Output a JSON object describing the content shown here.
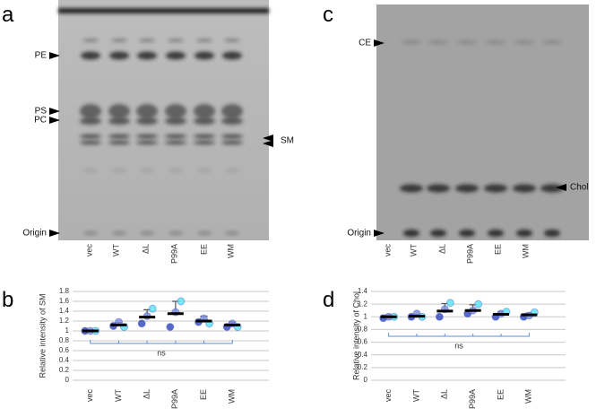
{
  "panel_labels": {
    "a": "a",
    "b": "b",
    "c": "c",
    "d": "d"
  },
  "tlc_a": {
    "lanes": [
      "vec",
      "WT",
      "ΔL",
      "P99A",
      "EE",
      "WM"
    ],
    "markers": [
      "PE",
      "PS",
      "PC",
      "SM",
      "Origin"
    ]
  },
  "tlc_c": {
    "lanes": [
      "vec",
      "WT",
      "ΔL",
      "P99A",
      "EE",
      "WM"
    ],
    "markers": [
      "CE",
      "Chol",
      "Origin"
    ]
  },
  "chart_data": [
    {
      "type": "dot",
      "y_label": "Relative intensity of SM",
      "categories": [
        "vec",
        "WT",
        "ΔL",
        "P99A",
        "EE",
        "WM"
      ],
      "means": [
        1.0,
        1.12,
        1.28,
        1.35,
        1.2,
        1.12
      ],
      "errors": [
        0.02,
        0.05,
        0.15,
        0.25,
        0.1,
        0.06
      ],
      "points": [
        [
          1.0,
          1.0,
          1.0
        ],
        [
          1.1,
          1.18,
          1.08
        ],
        [
          1.15,
          1.3,
          1.45
        ],
        [
          1.08,
          1.38,
          1.6
        ],
        [
          1.18,
          1.25,
          1.15
        ],
        [
          1.08,
          1.15,
          1.08
        ]
      ],
      "point_colors": [
        "#3a4fc0",
        "#8090e0",
        "#60e4f4"
      ],
      "ylim": [
        0,
        1.8
      ],
      "yticks": [
        0,
        0.2,
        0.4,
        0.6,
        0.8,
        1,
        1.2,
        1.4,
        1.6,
        1.8
      ],
      "grid": true,
      "annotation": "ns"
    },
    {
      "type": "dot",
      "y_label": "Relative intensity of Chol",
      "categories": [
        "vec",
        "WT",
        "ΔL",
        "P99A",
        "EE",
        "WM"
      ],
      "means": [
        1.0,
        1.01,
        1.09,
        1.1,
        1.04,
        1.03
      ],
      "errors": [
        0.03,
        0.03,
        0.12,
        0.09,
        0.04,
        0.03
      ],
      "points": [
        [
          0.98,
          1.0,
          1.0
        ],
        [
          1.0,
          1.05,
          1.0
        ],
        [
          1.0,
          1.12,
          1.22
        ],
        [
          1.05,
          1.1,
          1.2
        ],
        [
          1.0,
          1.05,
          1.08
        ],
        [
          1.0,
          1.02,
          1.07
        ]
      ],
      "point_colors": [
        "#3a4fc0",
        "#8090e0",
        "#60e4f4"
      ],
      "ylim": [
        0,
        1.4
      ],
      "yticks": [
        0,
        0.2,
        0.4,
        0.6,
        0.8,
        1,
        1.2,
        1.4
      ],
      "grid": true,
      "annotation": "ns"
    }
  ]
}
